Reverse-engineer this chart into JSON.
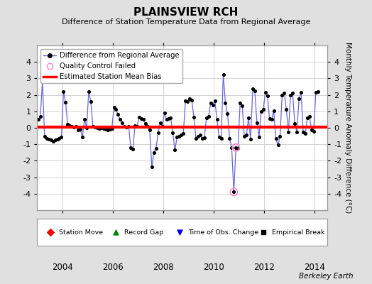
{
  "title": "PLAINSVIEW RCH",
  "subtitle": "Difference of Station Temperature Data from Regional Average",
  "ylabel": "Monthly Temperature Anomaly Difference (°C)",
  "ylim": [
    -5,
    5
  ],
  "xlim_start": 2003.0,
  "xlim_end": 2014.5,
  "bias_level": 0.05,
  "xticks": [
    2004,
    2006,
    2008,
    2010,
    2012,
    2014
  ],
  "yticks": [
    -4,
    -3,
    -2,
    -1,
    0,
    1,
    2,
    3,
    4
  ],
  "bg_color": "#e0e0e0",
  "plot_bg_color": "#ffffff",
  "grid_color": "#cccccc",
  "line_color": "#6666dd",
  "marker_color": "#000000",
  "bias_color": "#ff0000",
  "qc_fail_color": "#ff88cc",
  "time_series": [
    [
      2003.042,
      0.5
    ],
    [
      2003.125,
      0.7
    ],
    [
      2003.208,
      2.85
    ],
    [
      2003.292,
      -0.5
    ],
    [
      2003.375,
      -0.65
    ],
    [
      2003.458,
      -0.7
    ],
    [
      2003.542,
      -0.75
    ],
    [
      2003.625,
      -0.8
    ],
    [
      2003.708,
      -0.75
    ],
    [
      2003.792,
      -0.7
    ],
    [
      2003.875,
      -0.65
    ],
    [
      2003.958,
      -0.55
    ],
    [
      2004.042,
      2.2
    ],
    [
      2004.125,
      1.55
    ],
    [
      2004.208,
      0.2
    ],
    [
      2004.292,
      0.15
    ],
    [
      2004.375,
      0.1
    ],
    [
      2004.458,
      0.05
    ],
    [
      2004.542,
      0.1
    ],
    [
      2004.625,
      -0.15
    ],
    [
      2004.708,
      -0.1
    ],
    [
      2004.792,
      -0.55
    ],
    [
      2004.875,
      0.5
    ],
    [
      2004.958,
      0.0
    ],
    [
      2005.042,
      2.2
    ],
    [
      2005.125,
      1.6
    ],
    [
      2005.208,
      0.1
    ],
    [
      2005.292,
      0.05
    ],
    [
      2005.375,
      0.0
    ],
    [
      2005.458,
      -0.05
    ],
    [
      2005.542,
      0.0
    ],
    [
      2005.625,
      -0.05
    ],
    [
      2005.708,
      -0.1
    ],
    [
      2005.792,
      -0.15
    ],
    [
      2005.875,
      -0.1
    ],
    [
      2005.958,
      -0.05
    ],
    [
      2006.042,
      1.25
    ],
    [
      2006.125,
      1.1
    ],
    [
      2006.208,
      0.8
    ],
    [
      2006.292,
      0.5
    ],
    [
      2006.375,
      0.3
    ],
    [
      2006.458,
      0.1
    ],
    [
      2006.542,
      0.05
    ],
    [
      2006.625,
      0.1
    ],
    [
      2006.708,
      -1.2
    ],
    [
      2006.792,
      -1.3
    ],
    [
      2006.875,
      0.15
    ],
    [
      2006.958,
      0.1
    ],
    [
      2007.042,
      0.65
    ],
    [
      2007.125,
      0.55
    ],
    [
      2007.208,
      0.5
    ],
    [
      2007.292,
      0.25
    ],
    [
      2007.375,
      0.1
    ],
    [
      2007.458,
      -0.15
    ],
    [
      2007.542,
      -2.35
    ],
    [
      2007.625,
      -1.5
    ],
    [
      2007.708,
      -1.25
    ],
    [
      2007.792,
      -0.3
    ],
    [
      2007.875,
      0.3
    ],
    [
      2007.958,
      0.1
    ],
    [
      2008.042,
      0.9
    ],
    [
      2008.125,
      0.5
    ],
    [
      2008.208,
      0.55
    ],
    [
      2008.292,
      0.6
    ],
    [
      2008.375,
      -0.3
    ],
    [
      2008.458,
      -1.35
    ],
    [
      2008.542,
      -0.55
    ],
    [
      2008.625,
      -0.5
    ],
    [
      2008.708,
      -0.45
    ],
    [
      2008.792,
      -0.35
    ],
    [
      2008.875,
      1.65
    ],
    [
      2008.958,
      1.6
    ],
    [
      2009.042,
      1.75
    ],
    [
      2009.125,
      1.7
    ],
    [
      2009.208,
      0.65
    ],
    [
      2009.292,
      -0.65
    ],
    [
      2009.375,
      -0.5
    ],
    [
      2009.458,
      -0.45
    ],
    [
      2009.542,
      -0.65
    ],
    [
      2009.625,
      -0.6
    ],
    [
      2009.708,
      0.6
    ],
    [
      2009.792,
      0.7
    ],
    [
      2009.875,
      1.5
    ],
    [
      2009.958,
      1.4
    ],
    [
      2010.042,
      1.65
    ],
    [
      2010.125,
      0.5
    ],
    [
      2010.208,
      -0.55
    ],
    [
      2010.292,
      -0.65
    ],
    [
      2010.375,
      3.25
    ],
    [
      2010.458,
      1.5
    ],
    [
      2010.542,
      0.85
    ],
    [
      2010.625,
      -0.65
    ],
    [
      2010.708,
      -1.2
    ],
    [
      2010.792,
      -3.9
    ],
    [
      2010.875,
      -1.2
    ],
    [
      2010.958,
      -1.25
    ],
    [
      2011.042,
      1.5
    ],
    [
      2011.125,
      1.35
    ],
    [
      2011.208,
      -0.5
    ],
    [
      2011.292,
      -0.45
    ],
    [
      2011.375,
      0.6
    ],
    [
      2011.458,
      -0.7
    ],
    [
      2011.542,
      2.35
    ],
    [
      2011.625,
      2.25
    ],
    [
      2011.708,
      0.3
    ],
    [
      2011.792,
      -0.55
    ],
    [
      2011.875,
      1.0
    ],
    [
      2011.958,
      1.1
    ],
    [
      2012.042,
      2.15
    ],
    [
      2012.125,
      1.95
    ],
    [
      2012.208,
      0.55
    ],
    [
      2012.292,
      0.5
    ],
    [
      2012.375,
      1.05
    ],
    [
      2012.458,
      -0.65
    ],
    [
      2012.542,
      -1.05
    ],
    [
      2012.625,
      -0.5
    ],
    [
      2012.708,
      2.0
    ],
    [
      2012.792,
      2.1
    ],
    [
      2012.875,
      1.1
    ],
    [
      2012.958,
      -0.25
    ],
    [
      2013.042,
      2.0
    ],
    [
      2013.125,
      2.1
    ],
    [
      2013.208,
      0.25
    ],
    [
      2013.292,
      -0.25
    ],
    [
      2013.375,
      1.75
    ],
    [
      2013.458,
      2.15
    ],
    [
      2013.542,
      -0.25
    ],
    [
      2013.625,
      -0.35
    ],
    [
      2013.708,
      0.6
    ],
    [
      2013.792,
      0.7
    ],
    [
      2013.875,
      -0.15
    ],
    [
      2013.958,
      -0.2
    ],
    [
      2014.042,
      2.15
    ],
    [
      2014.125,
      2.2
    ]
  ],
  "qc_fail_points": [
    [
      2010.792,
      -3.9
    ],
    [
      2010.875,
      -1.2
    ]
  ]
}
